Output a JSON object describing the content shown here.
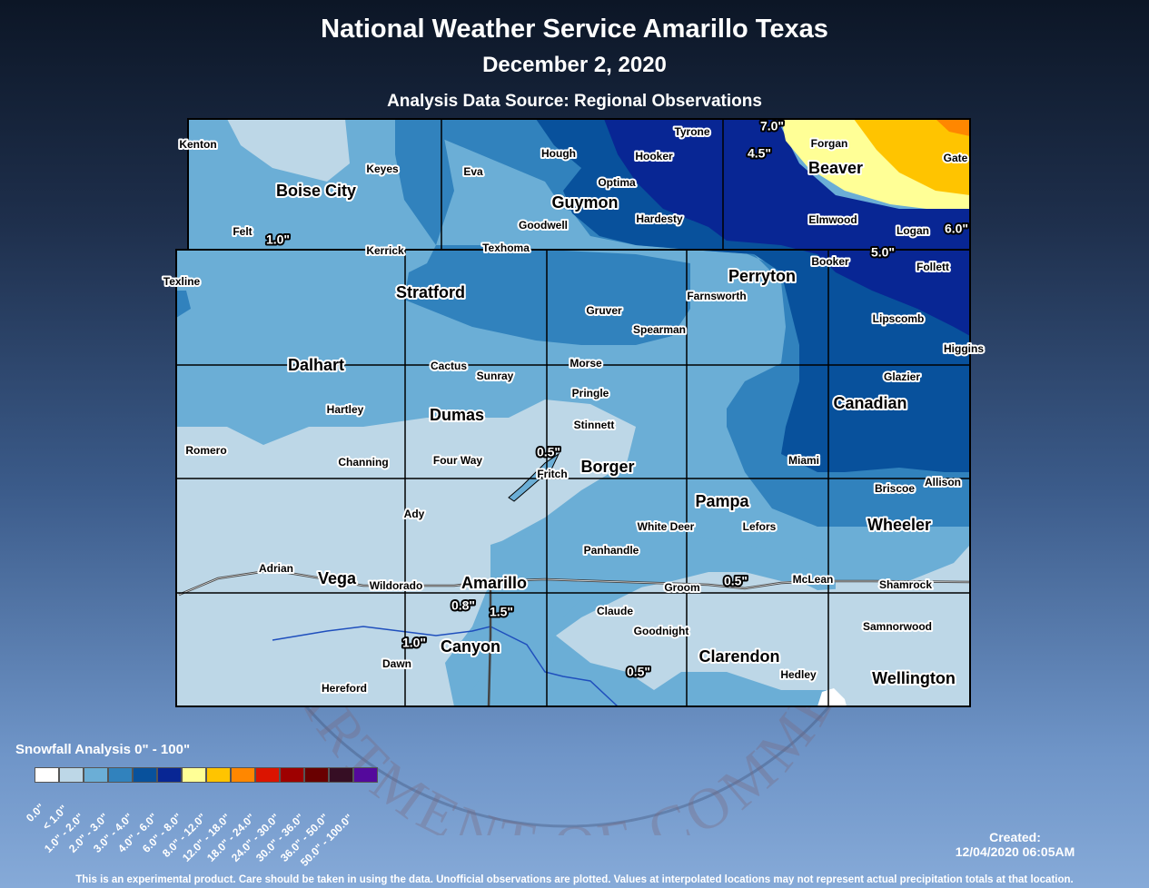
{
  "header": {
    "title": "National Weather Service Amarillo Texas",
    "date": "December 2, 2020",
    "source": "Analysis Data Source: Regional Observations"
  },
  "legend": {
    "title": "Snowfall Analysis 0\" - 100\"",
    "items": [
      {
        "label": "0.0\"",
        "color": "#ffffff"
      },
      {
        "label": "< 1.0\"",
        "color": "#bdd7e7"
      },
      {
        "label": "1.0\" - 2.0\"",
        "color": "#6baed6"
      },
      {
        "label": "2.0\" - 3.0\"",
        "color": "#3182bd"
      },
      {
        "label": "3.0\" - 4.0\"",
        "color": "#08519c"
      },
      {
        "label": "4.0\" - 6.0\"",
        "color": "#082694"
      },
      {
        "label": "6.0\" - 8.0\"",
        "color": "#ffff96"
      },
      {
        "label": "8.0\" - 12.0\"",
        "color": "#ffc400"
      },
      {
        "label": "12.0\" - 18.0\"",
        "color": "#ff8700"
      },
      {
        "label": "18.0\" - 24.0\"",
        "color": "#db1400"
      },
      {
        "label": "24.0\" - 30.0\"",
        "color": "#9e0000"
      },
      {
        "label": "30.0\" - 36.0\"",
        "color": "#690000"
      },
      {
        "label": "36.0\" - 50.0\"",
        "color": "#360e24"
      },
      {
        "label": "50.0\" - 100.0\"",
        "color": "#54099c"
      }
    ]
  },
  "created": {
    "label": "Created:",
    "timestamp": "12/04/2020 06:05AM"
  },
  "footer": "This is an experimental product. Care should be taken in using the data. Unofficial observations are plotted. Values at interpolated locations may not represent actual precipitation totals at that location.",
  "seal_text": "DEPARTMENT OF COMMERCE",
  "places": {
    "major": [
      "Boise City",
      "Guymon",
      "Beaver",
      "Perryton",
      "Stratford",
      "Dalhart",
      "Dumas",
      "Canadian",
      "Borger",
      "Pampa",
      "Wheeler",
      "Amarillo",
      "Vega",
      "Canyon",
      "Clarendon",
      "Wellington"
    ],
    "minor": [
      "Kenton",
      "Keyes",
      "Felt",
      "Kerrick",
      "Eva",
      "Hough",
      "Optima",
      "Goodwell",
      "Texhoma",
      "Tyrone",
      "Hooker",
      "Hardesty",
      "Forgan",
      "Gate",
      "Elmwood",
      "Logan",
      "Booker",
      "Follett",
      "Texline",
      "Farnsworth",
      "Gruver",
      "Spearman",
      "Lipscomb",
      "Higgins",
      "Cactus",
      "Sunray",
      "Morse",
      "Pringle",
      "Stinnett",
      "Glazier",
      "Hartley",
      "Romero",
      "Channing",
      "Four Way",
      "Fritch",
      "Miami",
      "Briscoe",
      "Allison",
      "Ady",
      "White Deer",
      "Lefors",
      "Panhandle",
      "Adrian",
      "Wildorado",
      "Groom",
      "McLean",
      "Shamrock",
      "Claude",
      "Goodnight",
      "Samnorwood",
      "Dawn",
      "Hedley",
      "Hereford"
    ]
  },
  "observations": [
    "7.0\"",
    "4.5\"",
    "6.0\"",
    "5.0\"",
    "1.0\"",
    "0.5\"",
    "0.5\"",
    "0.8\"",
    "1.5\"",
    "1.0\"",
    "0.5\""
  ]
}
